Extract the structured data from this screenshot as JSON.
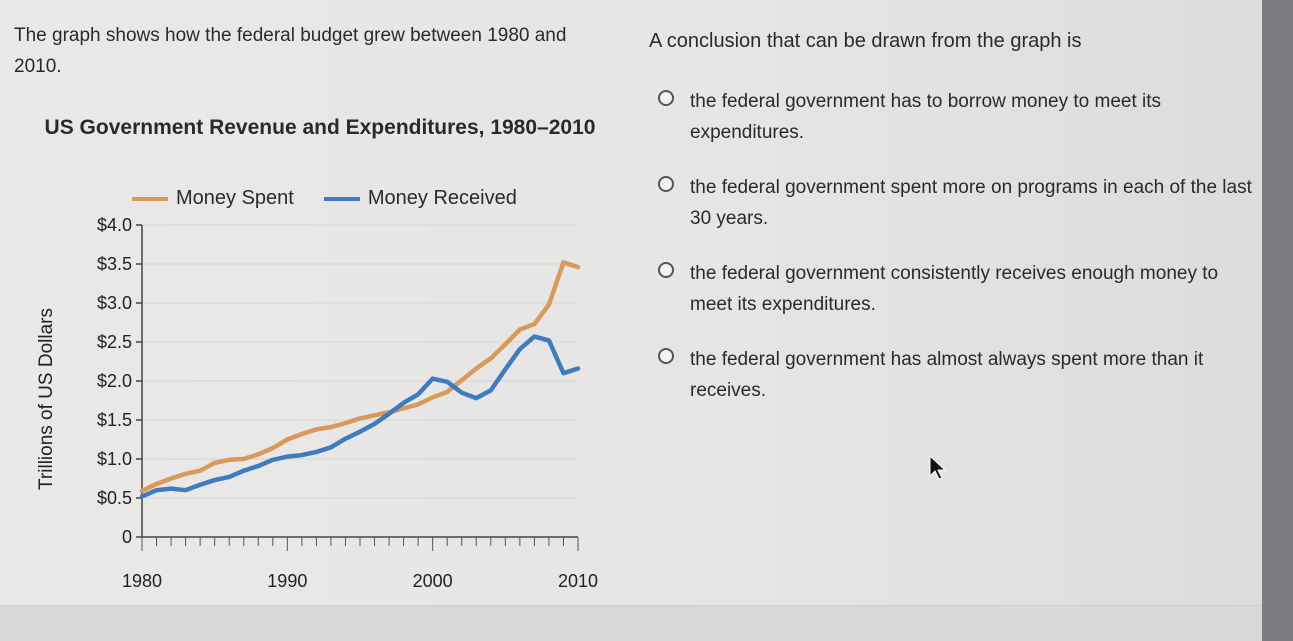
{
  "prompt": "The graph shows how the federal budget grew between 1980 and 2010.",
  "question": "A conclusion that can be drawn from the graph is",
  "options": [
    {
      "label": "the federal government has to borrow money to meet its expenditures."
    },
    {
      "label": "the federal government spent more on programs in each of the last 30 years."
    },
    {
      "label": "the federal government consistently receives enough money to meet its expenditures."
    },
    {
      "label": "the federal government has almost always spent more than it receives."
    }
  ],
  "colors": {
    "spent": "#d9995a",
    "received": "#3e7bbf"
  },
  "chart_data": {
    "type": "line",
    "title": "US Government Revenue and Expenditures, 1980–2010",
    "ylabel": "Trillions of US Dollars",
    "xlabel": "",
    "xlim": [
      1980,
      2010
    ],
    "ylim": [
      0,
      4.0
    ],
    "x_ticks": [
      "1980",
      "1990",
      "2000",
      "2010"
    ],
    "y_ticks": [
      "0",
      "$0.5",
      "$1.0",
      "$1.5",
      "$2.0",
      "$2.5",
      "$3.0",
      "$3.5",
      "$4.0"
    ],
    "legend": "top",
    "x": [
      1980,
      1981,
      1982,
      1983,
      1984,
      1985,
      1986,
      1987,
      1988,
      1989,
      1990,
      1991,
      1992,
      1993,
      1994,
      1995,
      1996,
      1997,
      1998,
      1999,
      2000,
      2001,
      2002,
      2003,
      2004,
      2005,
      2006,
      2007,
      2008,
      2009,
      2010
    ],
    "series": [
      {
        "name": "Money Spent",
        "values": [
          0.59,
          0.68,
          0.75,
          0.81,
          0.85,
          0.95,
          0.99,
          1.0,
          1.06,
          1.14,
          1.25,
          1.32,
          1.38,
          1.41,
          1.46,
          1.52,
          1.56,
          1.6,
          1.65,
          1.7,
          1.79,
          1.86,
          2.01,
          2.16,
          2.29,
          2.47,
          2.66,
          2.73,
          2.98,
          3.52,
          3.46
        ]
      },
      {
        "name": "Money Received",
        "values": [
          0.52,
          0.6,
          0.62,
          0.6,
          0.67,
          0.73,
          0.77,
          0.85,
          0.91,
          0.99,
          1.03,
          1.05,
          1.09,
          1.15,
          1.26,
          1.35,
          1.45,
          1.58,
          1.72,
          1.83,
          2.03,
          1.99,
          1.85,
          1.78,
          1.88,
          2.15,
          2.41,
          2.57,
          2.52,
          2.1,
          2.16
        ]
      }
    ]
  }
}
